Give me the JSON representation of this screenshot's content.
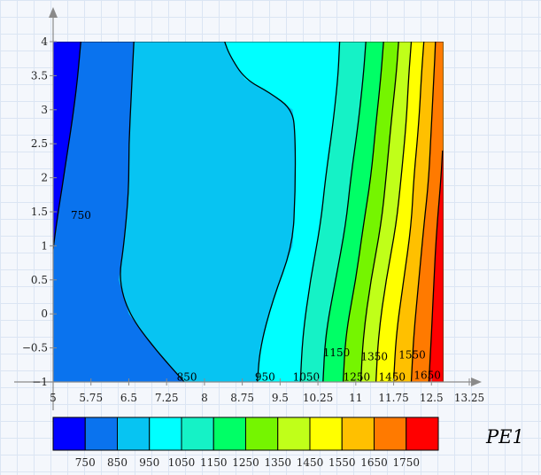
{
  "chart_data": {
    "type": "heatmap",
    "title": "",
    "xlabel": "",
    "ylabel": "",
    "xlim": [
      5,
      13.25
    ],
    "ylim": [
      -1,
      4
    ],
    "grid": true,
    "legend": "bottom",
    "x_ticks": [
      "5",
      "5.75",
      "6.5",
      "7.25",
      "8",
      "8.75",
      "9.5",
      "10.25",
      "11",
      "11.75",
      "12.5",
      "13.25"
    ],
    "y_ticks": [
      "−1",
      "−0.5",
      "0",
      "0.5",
      "1",
      "1.5",
      "2",
      "2.5",
      "3",
      "3.5",
      "4"
    ],
    "data_extent": {
      "x": [
        5,
        13.25
      ],
      "y": [
        -1,
        4
      ]
    },
    "contour_levels": [
      750,
      850,
      950,
      1050,
      1150,
      1250,
      1350,
      1450,
      1550,
      1650,
      1750
    ],
    "band_colors": [
      "#0000ff",
      "#0a73ee",
      "#07c4f2",
      "#00ffff",
      "#15f2c6",
      "#00ff66",
      "#75f500",
      "#c0ff19",
      "#ffff00",
      "#ffc000",
      "#ff7a00",
      "#ff0000"
    ],
    "contour_lines": [
      {
        "level": 750,
        "points": [
          [
            5.0,
            0.95
          ],
          [
            5.1,
            1.5
          ],
          [
            5.25,
            2.2
          ],
          [
            5.45,
            3.2
          ],
          [
            5.55,
            4.0
          ]
        ]
      },
      {
        "level": 850,
        "points": [
          [
            7.6,
            -1.0
          ],
          [
            7.0,
            -0.5
          ],
          [
            6.5,
            0.0
          ],
          [
            6.3,
            0.5
          ],
          [
            6.4,
            1.0
          ],
          [
            6.5,
            1.8
          ],
          [
            6.5,
            2.5
          ],
          [
            6.55,
            3.2
          ],
          [
            6.6,
            4.0
          ]
        ]
      },
      {
        "level": 950,
        "points": [
          [
            9.05,
            -1.0
          ],
          [
            9.1,
            -0.5
          ],
          [
            9.35,
            0.2
          ],
          [
            9.75,
            1.0
          ],
          [
            9.8,
            1.8
          ],
          [
            9.8,
            2.6
          ],
          [
            9.75,
            3.0
          ],
          [
            9.3,
            3.25
          ],
          [
            8.8,
            3.45
          ],
          [
            8.5,
            3.8
          ],
          [
            8.4,
            4.0
          ]
        ]
      },
      {
        "level": 1050,
        "points": [
          [
            9.9,
            -1.0
          ],
          [
            9.95,
            -0.3
          ],
          [
            10.1,
            0.5
          ],
          [
            10.3,
            1.3
          ],
          [
            10.4,
            2.0
          ],
          [
            10.55,
            2.8
          ],
          [
            10.65,
            3.5
          ],
          [
            10.68,
            4.0
          ]
        ]
      },
      {
        "level": 1150,
        "points": [
          [
            10.35,
            -1.0
          ],
          [
            10.4,
            -0.3
          ],
          [
            10.6,
            0.5
          ],
          [
            10.8,
            1.3
          ],
          [
            10.9,
            2.0
          ],
          [
            11.05,
            2.8
          ],
          [
            11.15,
            3.5
          ],
          [
            11.2,
            4.0
          ]
        ]
      },
      {
        "level": 1250,
        "points": [
          [
            10.75,
            -1.0
          ],
          [
            10.8,
            -0.3
          ],
          [
            11.0,
            0.5
          ],
          [
            11.15,
            1.3
          ],
          [
            11.3,
            2.0
          ],
          [
            11.4,
            2.8
          ],
          [
            11.5,
            3.5
          ],
          [
            11.55,
            4.0
          ]
        ]
      },
      {
        "level": 1350,
        "points": [
          [
            11.1,
            -1.0
          ],
          [
            11.15,
            -0.3
          ],
          [
            11.3,
            0.5
          ],
          [
            11.5,
            1.3
          ],
          [
            11.6,
            2.0
          ],
          [
            11.7,
            2.8
          ],
          [
            11.8,
            3.5
          ],
          [
            11.85,
            4.0
          ]
        ]
      },
      {
        "level": 1450,
        "points": [
          [
            11.4,
            -1.0
          ],
          [
            11.45,
            -0.3
          ],
          [
            11.6,
            0.5
          ],
          [
            11.8,
            1.3
          ],
          [
            11.9,
            2.0
          ],
          [
            12.0,
            2.8
          ],
          [
            12.05,
            3.5
          ],
          [
            12.1,
            4.0
          ]
        ]
      },
      {
        "level": 1550,
        "points": [
          [
            11.75,
            -1.0
          ],
          [
            11.8,
            -0.3
          ],
          [
            11.95,
            0.5
          ],
          [
            12.1,
            1.3
          ],
          [
            12.15,
            2.0
          ],
          [
            12.25,
            2.8
          ],
          [
            12.3,
            3.5
          ],
          [
            12.35,
            4.0
          ]
        ]
      },
      {
        "level": 1650,
        "points": [
          [
            12.1,
            -1.0
          ],
          [
            12.15,
            -0.3
          ],
          [
            12.25,
            0.5
          ],
          [
            12.35,
            1.3
          ],
          [
            12.45,
            2.0
          ],
          [
            12.5,
            2.8
          ],
          [
            12.55,
            3.5
          ],
          [
            12.58,
            4.0
          ]
        ]
      },
      {
        "level": 1750,
        "points": [
          [
            12.45,
            -1.0
          ],
          [
            12.5,
            -0.3
          ],
          [
            12.55,
            0.5
          ],
          [
            12.6,
            1.2
          ],
          [
            12.68,
            1.9
          ],
          [
            12.72,
            2.4
          ]
        ]
      }
    ],
    "contour_labels": [
      {
        "text": "750",
        "x": 5.35,
        "y": 1.45
      },
      {
        "text": "850",
        "x": 7.45,
        "y": -0.93
      },
      {
        "text": "950",
        "x": 9.0,
        "y": -0.93
      },
      {
        "text": "1050",
        "x": 9.75,
        "y": -0.93
      },
      {
        "text": "1150",
        "x": 10.35,
        "y": -0.57
      },
      {
        "text": "1250",
        "x": 10.75,
        "y": -0.93
      },
      {
        "text": "1350",
        "x": 11.1,
        "y": -0.63
      },
      {
        "text": "1450",
        "x": 11.45,
        "y": -0.93
      },
      {
        "text": "1550",
        "x": 11.85,
        "y": -0.6
      },
      {
        "text": "1650",
        "x": 12.15,
        "y": -0.9
      }
    ],
    "colorbar": {
      "name": "PE1",
      "tick_labels": [
        "750",
        "850",
        "950",
        "1050",
        "1150",
        "1250",
        "1350",
        "1450",
        "1550",
        "1650",
        "1750"
      ]
    }
  }
}
